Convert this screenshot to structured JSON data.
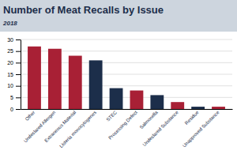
{
  "chart_data": {
    "type": "bar",
    "title": "Number of Meat Recalls by Issue",
    "subtitle": "2018",
    "categories": [
      "Other",
      "Undeclared Allergen",
      "Extraneous Material",
      "Listeria monocytogenes",
      "STEC",
      "Processing Defect",
      "Salmonella",
      "Undeclared Substance",
      "Residue",
      "Unapproved Substance"
    ],
    "values": [
      27,
      26,
      23,
      21,
      9,
      8,
      6,
      3,
      1,
      1
    ],
    "colors": [
      "#a82035",
      "#a82035",
      "#a82035",
      "#1c2e4a",
      "#1c2e4a",
      "#a82035",
      "#1c2e4a",
      "#a82035",
      "#1c2e4a",
      "#a82035"
    ],
    "ylim": [
      0,
      30
    ],
    "yticks": [
      0,
      5,
      10,
      15,
      20,
      25,
      30
    ],
    "grid": true
  }
}
